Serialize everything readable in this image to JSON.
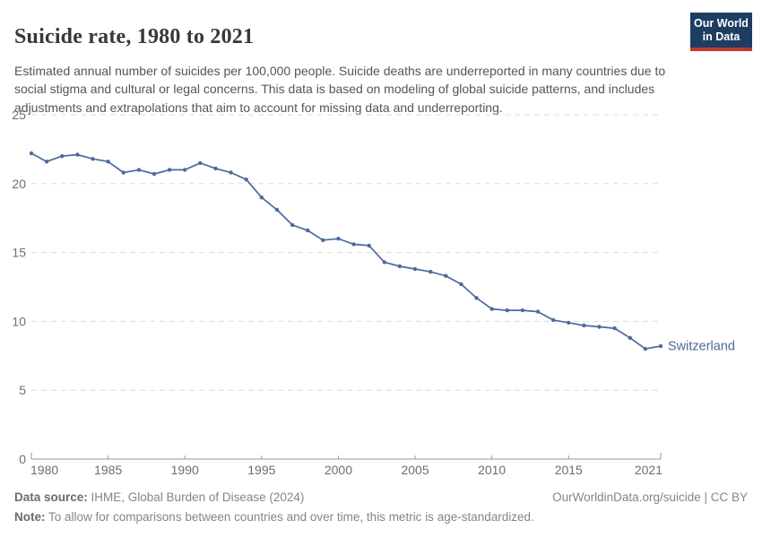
{
  "header": {
    "title": "Suicide rate, 1980 to 2021",
    "subtitle": "Estimated annual number of suicides per 100,000 people. Suicide deaths are underreported in many countries due to social stigma and cultural or legal concerns. This data is based on modeling of global suicide patterns, and includes adjustments and extrapolations that aim to account for missing data and underreporting.",
    "logo": {
      "line1": "Our World",
      "line2": "in Data",
      "bg_color": "#1d3d63",
      "accent_color": "#c0392b"
    }
  },
  "chart_data": {
    "type": "line",
    "title": "Suicide rate, 1980 to 2021",
    "xlabel": "",
    "ylabel": "",
    "ylim": [
      0,
      25
    ],
    "y_ticks": [
      0,
      5,
      10,
      15,
      20,
      25
    ],
    "x_ticks": [
      1980,
      1985,
      1990,
      1995,
      2000,
      2005,
      2010,
      2015,
      2021
    ],
    "grid": "horizontal-dashed",
    "legend_position": "end-of-line-label",
    "colors": {
      "line": "#4C6A9C",
      "gridline": "#dcdcdc",
      "axis": "#969696",
      "tick_label": "#6e6e6e"
    },
    "series": [
      {
        "name": "Switzerland",
        "color": "#4C6A9C",
        "x": [
          1980,
          1981,
          1982,
          1983,
          1984,
          1985,
          1986,
          1987,
          1988,
          1989,
          1990,
          1991,
          1992,
          1993,
          1994,
          1995,
          1996,
          1997,
          1998,
          1999,
          2000,
          2001,
          2002,
          2003,
          2004,
          2005,
          2006,
          2007,
          2008,
          2009,
          2010,
          2011,
          2012,
          2013,
          2014,
          2015,
          2016,
          2017,
          2018,
          2019,
          2020,
          2021
        ],
        "values": [
          22.2,
          21.6,
          22.0,
          22.1,
          21.8,
          21.6,
          20.8,
          21.0,
          20.7,
          21.0,
          21.0,
          21.5,
          21.1,
          20.8,
          20.3,
          19.0,
          18.1,
          17.0,
          16.6,
          15.9,
          16.0,
          15.6,
          15.5,
          14.3,
          14.0,
          13.8,
          13.6,
          13.3,
          12.7,
          11.7,
          10.9,
          10.8,
          10.8,
          10.7,
          10.1,
          9.9,
          9.7,
          9.6,
          9.5,
          8.8,
          8.0,
          8.2
        ]
      }
    ]
  },
  "footer": {
    "datasource_label": "Data source:",
    "datasource_text": " IHME, Global Burden of Disease (2024)",
    "link": "OurWorldinData.org/suicide | CC BY",
    "note_label": "Note:",
    "note_text": " To allow for comparisons between countries and over time, this metric is age-standardized."
  }
}
